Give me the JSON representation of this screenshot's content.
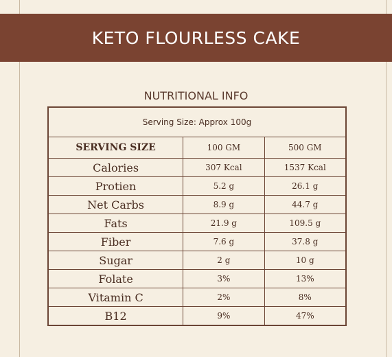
{
  "title": "KETO FLOURLESS CAKE",
  "subtitle": "NUTRITIONAL INFO",
  "serving_size_note": "Serving Size: Approx 100g",
  "headers": [
    "SERVING SIZE",
    "100 GM",
    "500 GM"
  ],
  "rows": [
    {
      "name": "Calories",
      "v100": "307 Kcal",
      "v500": "1537 Kcal"
    },
    {
      "name": "Protien",
      "v100": "5.2 g",
      "v500": "26.1 g"
    },
    {
      "name": "Net Carbs",
      "v100": "8.9 g",
      "v500": "44.7 g"
    },
    {
      "name": "Fats",
      "v100": "21.9 g",
      "v500": "109.5 g"
    },
    {
      "name": "Fiber",
      "v100": "7.6 g",
      "v500": "37.8 g"
    },
    {
      "name": "Sugar",
      "v100": "2 g",
      "v500": "10 g"
    },
    {
      "name": "Folate",
      "v100": "3%",
      "v500": "13%"
    },
    {
      "name": "Vitamin C",
      "v100": "2%",
      "v500": "8%"
    },
    {
      "name": "B12",
      "v100": "9%",
      "v500": "47%"
    }
  ]
}
